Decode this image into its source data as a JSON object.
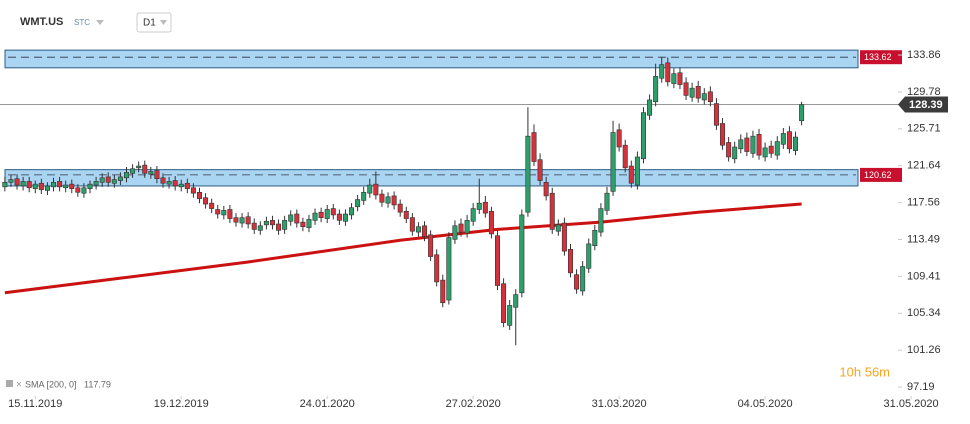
{
  "chart_data": {
    "type": "candlestick",
    "symbol": "WMT.US",
    "market": "STC",
    "interval": "D1",
    "countdown": "10h 56m",
    "up_color": "#2e9e6b",
    "down_color": "#d2323b",
    "xlim": [
      -0.8,
      155.4
    ],
    "ylim": [
      96.31,
      135.52
    ],
    "yticks": [
      133.86,
      129.78,
      125.71,
      121.64,
      117.56,
      113.49,
      109.41,
      105.34,
      101.26,
      97.19
    ],
    "xticks": [
      {
        "value": 5,
        "label": "15.11.2019"
      },
      {
        "value": 29,
        "label": "19.12.2019"
      },
      {
        "value": 53,
        "label": "24.01.2020"
      },
      {
        "value": 77,
        "label": "27.02.2020"
      },
      {
        "value": 101,
        "label": "31.03.2020"
      },
      {
        "value": 125,
        "label": "04.05.2020"
      },
      {
        "value": 149,
        "label": "31.05.2020"
      }
    ],
    "open": [
      119.3,
      119.8,
      120.2,
      119.4,
      119.9,
      119.1,
      119.7,
      118.9,
      119.3,
      119.9,
      119.2,
      119.6,
      119.2,
      118.6,
      119.1,
      119.5,
      119.8,
      120.4,
      119.7,
      120.0,
      120.3,
      120.8,
      121.4,
      121.7,
      120.7,
      121.1,
      120.3,
      119.6,
      120.0,
      119.3,
      119.7,
      119.2,
      118.7,
      118.1,
      117.5,
      116.8,
      116.2,
      116.8,
      115.9,
      115.3,
      116.0,
      115.3,
      114.5,
      115.1,
      115.6,
      115.2,
      114.6,
      115.5,
      116.3,
      115.4,
      114.8,
      115.6,
      116.5,
      115.8,
      116.9,
      116.3,
      115.5,
      116.2,
      117.1,
      117.8,
      118.6,
      119.6,
      118.5,
      117.5,
      118.3,
      117.4,
      116.6,
      115.9,
      114.3,
      115.0,
      114.0,
      111.8,
      109.0,
      106.8,
      113.5,
      115.2,
      114.2,
      115.5,
      116.8,
      117.6,
      116.6,
      113.9,
      108.6,
      104.0,
      106.0,
      107.6,
      116.5,
      125.3,
      122.3,
      119.8,
      118.6,
      114.4,
      115.3,
      112.4,
      109.6,
      107.8,
      110.3,
      112.8,
      114.3,
      116.7,
      118.8,
      125.6,
      123.9,
      121.6,
      119.5,
      122.4,
      127.2,
      128.7,
      131.3,
      133.0,
      130.7,
      131.9,
      130.8,
      129.2,
      130.4,
      128.9,
      129.8,
      128.5,
      126.3,
      124.2,
      122.4,
      123.5,
      124.7,
      123.0,
      125.1,
      122.6,
      123.8,
      122.8,
      124.0,
      125.4,
      123.3,
      126.6
    ],
    "high": [
      120.4,
      120.6,
      120.7,
      120.4,
      120.4,
      120.0,
      120.2,
      119.8,
      120.3,
      120.4,
      120.0,
      120.1,
      119.6,
      119.7,
      120.0,
      120.4,
      120.8,
      120.9,
      120.6,
      120.9,
      121.5,
      121.8,
      122.1,
      122.2,
      121.5,
      121.6,
      120.8,
      120.4,
      120.5,
      120.1,
      120.2,
      119.7,
      119.2,
      118.6,
      118.0,
      117.3,
      117.2,
      117.3,
      116.4,
      116.4,
      116.5,
      115.8,
      115.5,
      116.0,
      116.1,
      115.7,
      116.1,
      116.7,
      116.8,
      115.9,
      116.2,
      116.9,
      117.0,
      117.3,
      117.4,
      116.8,
      116.8,
      117.5,
      118.4,
      119.3,
      120.2,
      121.0,
      119.0,
      118.7,
      118.8,
      117.9,
      117.1,
      116.4,
      115.4,
      115.5,
      114.5,
      112.4,
      109.6,
      114.3,
      115.6,
      115.8,
      116.2,
      117.5,
      120.2,
      118.3,
      117.1,
      114.5,
      109.2,
      106.8,
      108.0,
      116.8,
      128.1,
      126.2,
      123.0,
      120.4,
      119.2,
      115.7,
      115.9,
      113.0,
      110.2,
      111.1,
      113.6,
      115.1,
      117.5,
      119.3,
      126.6,
      126.3,
      124.5,
      122.2,
      123.2,
      128.1,
      129.5,
      132.9,
      133.6,
      133.6,
      132.4,
      132.5,
      131.4,
      130.8,
      131.0,
      130.2,
      130.4,
      129.1,
      126.9,
      124.8,
      124.3,
      125.1,
      125.3,
      125.5,
      125.7,
      124.2,
      124.4,
      124.9,
      125.8,
      126.0,
      125.4,
      128.7
    ],
    "low": [
      118.8,
      119.3,
      119.0,
      118.9,
      118.7,
      118.6,
      118.5,
      118.4,
      118.8,
      118.8,
      118.7,
      118.6,
      118.2,
      118.1,
      118.6,
      119.0,
      119.3,
      119.3,
      119.2,
      119.5,
      119.8,
      120.3,
      120.9,
      120.3,
      120.2,
      119.7,
      119.2,
      119.1,
      118.9,
      118.8,
      118.6,
      118.1,
      117.5,
      116.9,
      116.4,
      115.8,
      115.7,
      115.3,
      114.9,
      114.8,
      114.7,
      114.1,
      114.0,
      114.6,
      114.6,
      114.0,
      114.1,
      115.0,
      114.8,
      114.4,
      114.3,
      115.1,
      115.4,
      115.3,
      115.7,
      115.1,
      115.0,
      115.7,
      116.6,
      117.3,
      118.1,
      117.9,
      117.1,
      117.0,
      116.8,
      116.0,
      115.3,
      113.9,
      113.8,
      113.3,
      111.1,
      108.3,
      106.0,
      106.3,
      113.0,
      113.8,
      113.7,
      115.0,
      116.3,
      115.9,
      113.6,
      107.9,
      103.8,
      103.5,
      101.8,
      107.1,
      116.0,
      121.6,
      119.5,
      117.8,
      114.1,
      113.9,
      111.7,
      109.3,
      107.5,
      107.3,
      109.8,
      112.3,
      113.8,
      116.2,
      118.3,
      123.2,
      120.9,
      119.2,
      119.0,
      121.9,
      126.7,
      128.2,
      130.8,
      130.4,
      130.2,
      130.1,
      128.9,
      128.7,
      128.6,
      128.4,
      128.2,
      125.6,
      123.4,
      122.1,
      121.9,
      123.0,
      122.7,
      122.5,
      122.3,
      122.1,
      122.5,
      122.3,
      123.5,
      123.0,
      122.8,
      126.1
    ],
    "close": [
      119.8,
      120.1,
      119.5,
      119.9,
      119.2,
      119.6,
      119.0,
      119.4,
      119.8,
      119.3,
      119.5,
      119.1,
      118.7,
      119.2,
      119.6,
      119.9,
      120.3,
      119.8,
      120.1,
      120.4,
      120.9,
      121.3,
      121.6,
      120.8,
      121.0,
      120.2,
      119.7,
      119.9,
      119.4,
      119.6,
      119.1,
      118.6,
      118.0,
      117.4,
      116.9,
      116.3,
      116.7,
      115.8,
      115.4,
      115.9,
      115.2,
      114.6,
      115.0,
      115.5,
      115.1,
      114.5,
      115.6,
      116.2,
      115.3,
      114.9,
      115.7,
      116.4,
      115.9,
      116.8,
      116.2,
      115.6,
      116.3,
      117.0,
      117.9,
      118.7,
      119.5,
      118.4,
      117.6,
      118.2,
      117.3,
      116.5,
      115.8,
      114.4,
      114.9,
      113.8,
      111.6,
      108.8,
      106.5,
      113.7,
      115.0,
      114.3,
      115.6,
      116.9,
      117.5,
      116.4,
      114.1,
      108.4,
      104.3,
      106.2,
      107.4,
      116.2,
      124.9,
      122.1,
      120.0,
      118.3,
      114.6,
      115.1,
      112.2,
      109.8,
      108.0,
      110.5,
      113.0,
      114.5,
      116.9,
      118.6,
      125.3,
      123.7,
      121.4,
      119.7,
      122.6,
      127.5,
      128.9,
      131.5,
      132.8,
      130.9,
      131.8,
      130.6,
      129.4,
      130.2,
      129.1,
      129.6,
      128.7,
      126.1,
      123.9,
      122.6,
      123.7,
      124.5,
      123.2,
      124.9,
      122.8,
      123.6,
      123.0,
      124.3,
      125.2,
      123.5,
      124.8,
      128.39
    ],
    "current_price": 128.39,
    "sma": {
      "name": "SMA [200, 0]",
      "current_value": 117.79,
      "color": "#cc1111",
      "x": [
        0,
        20,
        40,
        65,
        81,
        98,
        114,
        131
      ],
      "values": [
        107.6,
        109.3,
        111.0,
        113.4,
        114.6,
        115.4,
        116.5,
        117.4
      ]
    },
    "zones": [
      {
        "level": 133.62,
        "low": 132.45,
        "high": 134.4
      },
      {
        "level": 120.62,
        "low": 119.4,
        "high": 121.2
      }
    ]
  }
}
